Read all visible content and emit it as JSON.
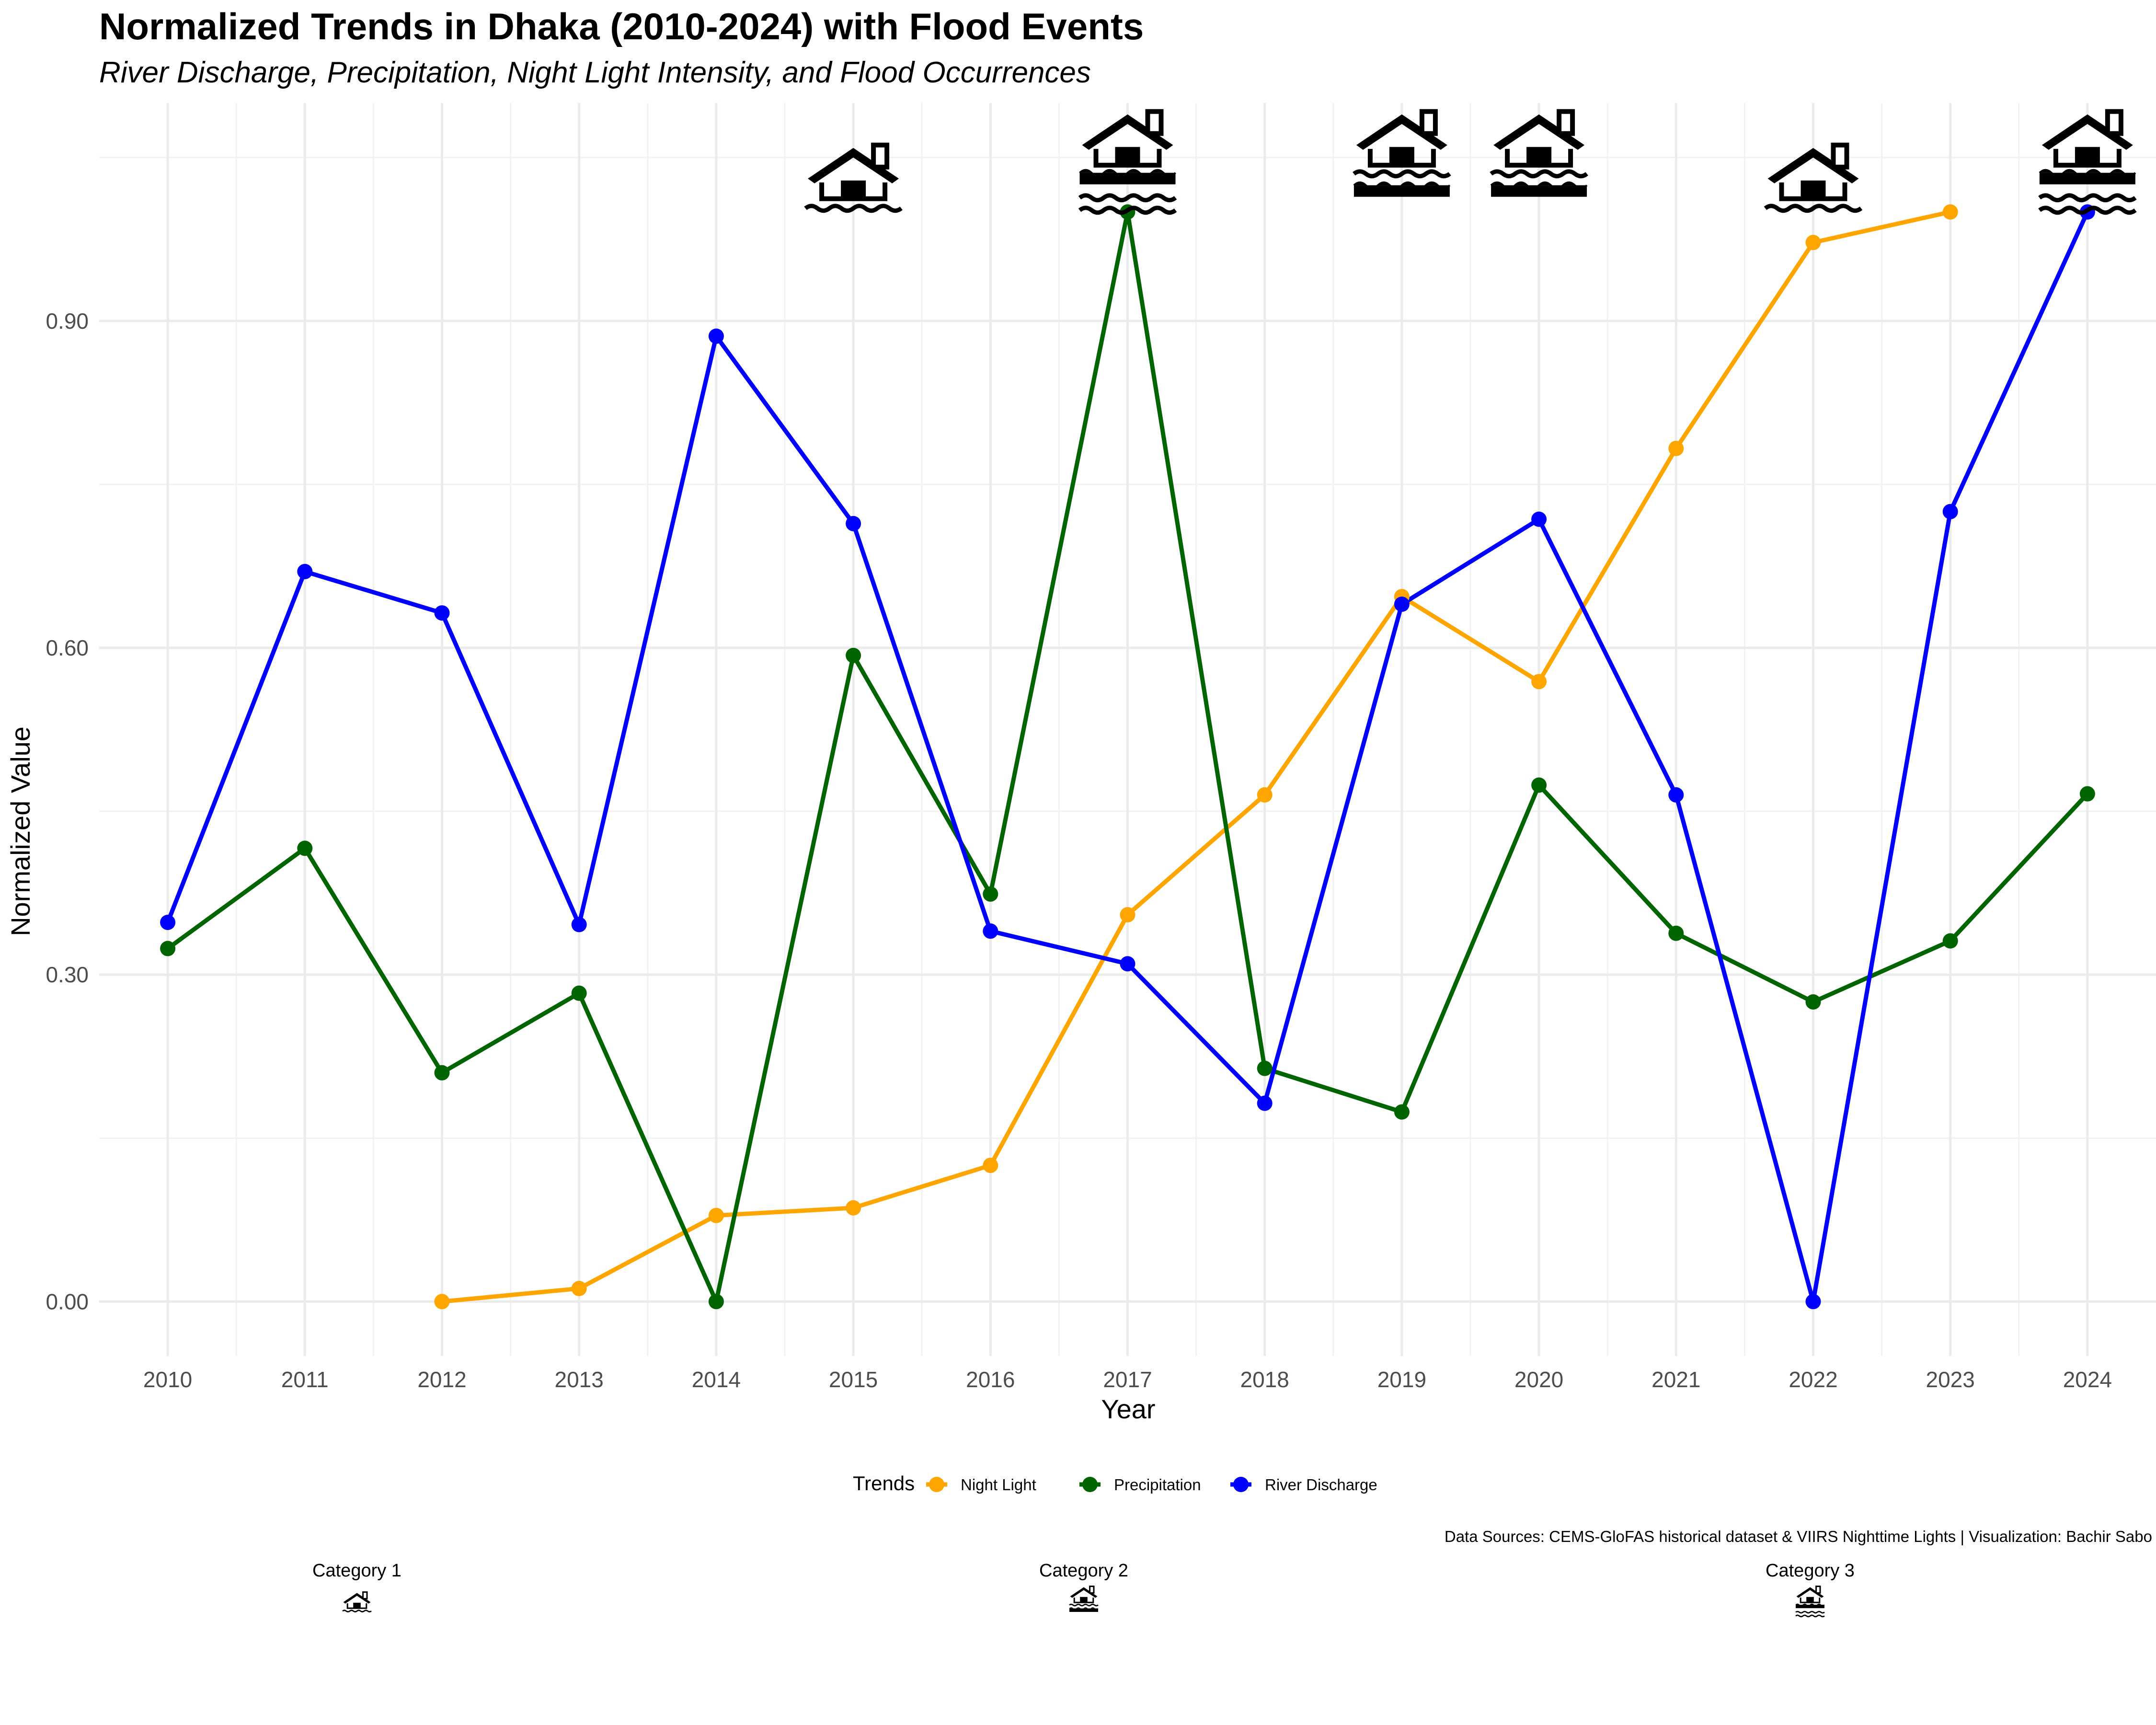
{
  "title": "Normalized Trends in Dhaka (2010-2024) with Flood Events",
  "subtitle": "River Discharge, Precipitation, Night Light Intensity, and Flood Occurrences",
  "caption": "Data Sources: CEMS-GloFAS historical dataset & VIIRS Nighttime Lights | Visualization: Bachir Sabo",
  "chart_data": {
    "type": "line",
    "xlabel": "Year",
    "ylabel": "Normalized Value",
    "x": [
      2010,
      2011,
      2012,
      2013,
      2014,
      2015,
      2016,
      2017,
      2018,
      2019,
      2020,
      2021,
      2022,
      2023,
      2024
    ],
    "x_tick_labels": [
      "2010",
      "2011",
      "2012",
      "2013",
      "2014",
      "2015",
      "2016",
      "2017",
      "2018",
      "2019",
      "2020",
      "2021",
      "2022",
      "2023",
      "2024"
    ],
    "y_tick_labels": [
      "0.00",
      "0.30",
      "0.60",
      "0.90"
    ],
    "y_ticks": [
      0.0,
      0.3,
      0.6,
      0.9
    ],
    "xlim": [
      2009.5,
      2024.5
    ],
    "ylim": [
      -0.05,
      1.1
    ],
    "grid": true,
    "legend_title": "Trends",
    "legend_position": "bottom",
    "series": [
      {
        "name": "Night Light",
        "color": "#FFA500",
        "values": [
          null,
          null,
          0.0,
          0.012,
          0.079,
          0.086,
          0.125,
          0.355,
          0.465,
          0.647,
          0.569,
          0.783,
          0.972,
          1.0,
          null
        ]
      },
      {
        "name": "Precipitation",
        "color": "#006400",
        "values": [
          0.324,
          0.416,
          0.21,
          0.283,
          0.0,
          0.593,
          0.374,
          1.0,
          0.214,
          0.174,
          0.474,
          0.338,
          0.275,
          0.331,
          0.466
        ]
      },
      {
        "name": "River Discharge",
        "color": "#0000FF",
        "values": [
          0.348,
          0.67,
          0.632,
          0.346,
          0.886,
          0.714,
          0.34,
          0.31,
          0.182,
          0.64,
          0.718,
          0.465,
          0.0,
          0.725,
          1.0
        ]
      }
    ],
    "flood_events": [
      {
        "year": 2015,
        "category": 1
      },
      {
        "year": 2017,
        "category": 3
      },
      {
        "year": 2019,
        "category": 2
      },
      {
        "year": 2020,
        "category": 2
      },
      {
        "year": 2022,
        "category": 1
      },
      {
        "year": 2024,
        "category": 3
      }
    ],
    "flood_icon_y": 1.05,
    "category_legend": [
      {
        "label": "Category 1",
        "icon": "flood-house-cat1-icon"
      },
      {
        "label": "Category 2",
        "icon": "flood-house-cat2-icon"
      },
      {
        "label": "Category 3",
        "icon": "flood-house-cat3-icon"
      }
    ]
  }
}
